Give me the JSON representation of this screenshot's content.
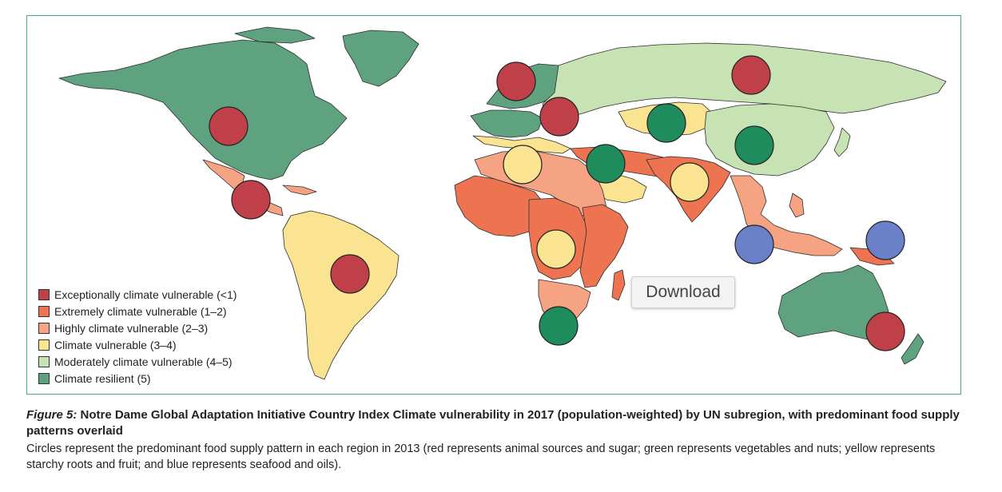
{
  "colors": {
    "exceptionally_vulnerable": "#c0404a",
    "extremely_vulnerable": "#ee7350",
    "highly_vulnerable": "#f5a382",
    "climate_vulnerable": "#fbe491",
    "moderately_vulnerable": "#c7e2b3",
    "climate_resilient": "#5fa27f",
    "circle_animal_sugar": "#c0404a",
    "circle_vegetables_nuts": "#1f8c5e",
    "circle_starchy_fruit": "#fbe491",
    "circle_seafood_oils": "#6a80c8"
  },
  "legend": {
    "items": [
      {
        "label": "Exceptionally climate vulnerable (<1)",
        "color": "#c0404a"
      },
      {
        "label": "Extremely climate vulnerable (1–2)",
        "color": "#ee7350"
      },
      {
        "label": "Highly climate vulnerable (2–3)",
        "color": "#f5a382"
      },
      {
        "label": "Climate vulnerable (3–4)",
        "color": "#fbe491"
      },
      {
        "label": "Moderately climate vulnerable (4–5)",
        "color": "#c7e2b3"
      },
      {
        "label": "Climate resilient (5)",
        "color": "#5fa27f"
      }
    ]
  },
  "download_label": "Download",
  "caption": {
    "figure_label": "Figure 5:",
    "title": " Notre Dame Global Adaptation Initiative Country Index Climate vulnerability in 2017 (population-weighted) by UN subregion, with predominant food supply patterns overlaid",
    "body": "Circles represent the predominant food supply pattern in each region in 2013 (red represents animal sources and sugar; green represents vegetables and nuts; yellow represents starchy roots and fruit; and blue represents seafood and oils)."
  }
}
